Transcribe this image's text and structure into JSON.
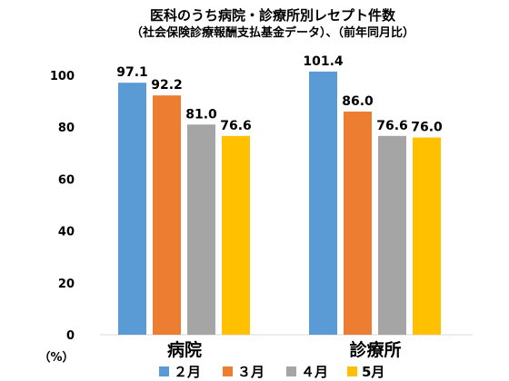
{
  "chart_data": {
    "type": "bar",
    "title": "医科のうち病院・診療所別レセプト件数",
    "subtitle": "（社会保険診療報酬支払基金データ）、（前年同月比）",
    "unit_label": "（%）",
    "categories": [
      "病院",
      "診療所"
    ],
    "series": [
      {
        "name": "２月",
        "values": [
          97.1,
          101.4
        ],
        "labels": [
          "97.1",
          "101.4"
        ],
        "color": "#5b9bd5"
      },
      {
        "name": "３月",
        "values": [
          92.2,
          86.0
        ],
        "labels": [
          "92.2",
          "86.0"
        ],
        "color": "#ed7d31"
      },
      {
        "name": "４月",
        "values": [
          81.0,
          76.6
        ],
        "labels": [
          "81.0",
          "76.6"
        ],
        "color": "#a5a5a5"
      },
      {
        "name": "5月",
        "values": [
          76.6,
          76.0
        ],
        "labels": [
          "76.6",
          "76.0"
        ],
        "color": "#ffc000"
      }
    ],
    "yticks": [
      "0",
      "20",
      "40",
      "60",
      "80",
      "100"
    ],
    "ylim": [
      0,
      108
    ],
    "grid": false,
    "legend_position": "bottom"
  }
}
